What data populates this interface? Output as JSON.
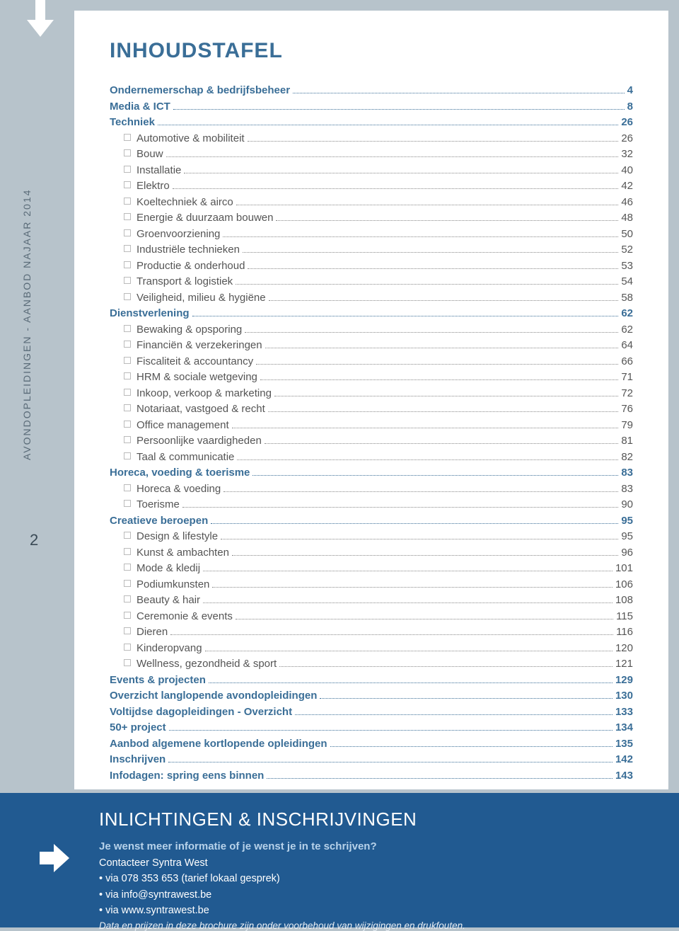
{
  "colors": {
    "pageBg": "#b7c3cb",
    "paperBg": "#ffffff",
    "titleColor": "#3a6e97",
    "sectionColor": "#3a6e97",
    "itemColor": "#555555",
    "footerBg": "#215a91",
    "footerAccent": "#b7d2ea"
  },
  "sidebar": {
    "text": "AVONDOPLEIDINGEN - AANBOD NAJAAR 2014",
    "pageNumber": "2"
  },
  "title": "INHOUDSTAFEL",
  "toc": [
    {
      "type": "section",
      "label": "Ondernemerschap & bedrijfsbeheer",
      "page": "4"
    },
    {
      "type": "section",
      "label": "Media & ICT",
      "page": "8"
    },
    {
      "type": "section",
      "label": "Techniek",
      "page": "26"
    },
    {
      "type": "item",
      "label": "Automotive & mobiliteit",
      "page": "26"
    },
    {
      "type": "item",
      "label": "Bouw",
      "page": "32"
    },
    {
      "type": "item",
      "label": "Installatie",
      "page": "40"
    },
    {
      "type": "item",
      "label": "Elektro",
      "page": "42"
    },
    {
      "type": "item",
      "label": "Koeltechniek & airco",
      "page": "46"
    },
    {
      "type": "item",
      "label": "Energie & duurzaam bouwen",
      "page": "48"
    },
    {
      "type": "item",
      "label": "Groenvoorziening",
      "page": "50"
    },
    {
      "type": "item",
      "label": "Industriële technieken",
      "page": "52"
    },
    {
      "type": "item",
      "label": "Productie & onderhoud",
      "page": "53"
    },
    {
      "type": "item",
      "label": "Transport & logistiek",
      "page": "54"
    },
    {
      "type": "item",
      "label": "Veiligheid, milieu & hygiëne",
      "page": "58"
    },
    {
      "type": "section",
      "label": "Dienstverlening",
      "page": "62"
    },
    {
      "type": "item",
      "label": "Bewaking & opsporing",
      "page": "62"
    },
    {
      "type": "item",
      "label": "Financiën & verzekeringen",
      "page": "64"
    },
    {
      "type": "item",
      "label": "Fiscaliteit & accountancy",
      "page": "66"
    },
    {
      "type": "item",
      "label": "HRM & sociale wetgeving",
      "page": "71"
    },
    {
      "type": "item",
      "label": "Inkoop, verkoop & marketing",
      "page": "72"
    },
    {
      "type": "item",
      "label": "Notariaat, vastgoed & recht",
      "page": "76"
    },
    {
      "type": "item",
      "label": "Office management",
      "page": "79"
    },
    {
      "type": "item",
      "label": "Persoonlijke vaardigheden",
      "page": "81"
    },
    {
      "type": "item",
      "label": "Taal & communicatie",
      "page": "82"
    },
    {
      "type": "section",
      "label": "Horeca, voeding & toerisme",
      "page": "83"
    },
    {
      "type": "item",
      "label": "Horeca & voeding",
      "page": "83"
    },
    {
      "type": "item",
      "label": "Toerisme",
      "page": "90"
    },
    {
      "type": "section",
      "label": "Creatieve beroepen",
      "page": "95"
    },
    {
      "type": "item",
      "label": "Design & lifestyle",
      "page": "95"
    },
    {
      "type": "item",
      "label": "Kunst & ambachten",
      "page": "96"
    },
    {
      "type": "item",
      "label": "Mode & kledij",
      "page": "101"
    },
    {
      "type": "item",
      "label": "Podiumkunsten",
      "page": "106"
    },
    {
      "type": "item",
      "label": "Beauty & hair",
      "page": "108"
    },
    {
      "type": "item",
      "label": "Ceremonie & events",
      "page": "115"
    },
    {
      "type": "item",
      "label": "Dieren",
      "page": "116"
    },
    {
      "type": "item",
      "label": "Kinderopvang",
      "page": "120"
    },
    {
      "type": "item",
      "label": "Wellness, gezondheid & sport",
      "page": "121"
    },
    {
      "type": "section",
      "label": "Events & projecten",
      "page": "129"
    },
    {
      "type": "section",
      "label": "Overzicht langlopende avondopleidingen",
      "page": "130"
    },
    {
      "type": "section",
      "label": "Voltijdse dagopleidingen - Overzicht",
      "page": "133"
    },
    {
      "type": "section",
      "label": "50+ project",
      "page": "134"
    },
    {
      "type": "section",
      "label": "Aanbod algemene kortlopende opleidingen",
      "page": "135"
    },
    {
      "type": "section",
      "label": "Inschrijven",
      "page": "142"
    },
    {
      "type": "section",
      "label": "Infodagen: spring eens binnen",
      "page": "143"
    }
  ],
  "footer": {
    "title": "INLICHTINGEN & INSCHRIJVINGEN",
    "line1": "Je wenst meer informatie of je wenst je in te schrijven?",
    "line2": "Contacteer Syntra West",
    "bullets": [
      "via 078 353 653 (tarief lokaal gesprek)",
      "via info@syntrawest.be",
      "via www.syntrawest.be"
    ],
    "note": "Data en prijzen in deze brochure zijn onder voorbehoud van wijzigingen en drukfouten."
  }
}
